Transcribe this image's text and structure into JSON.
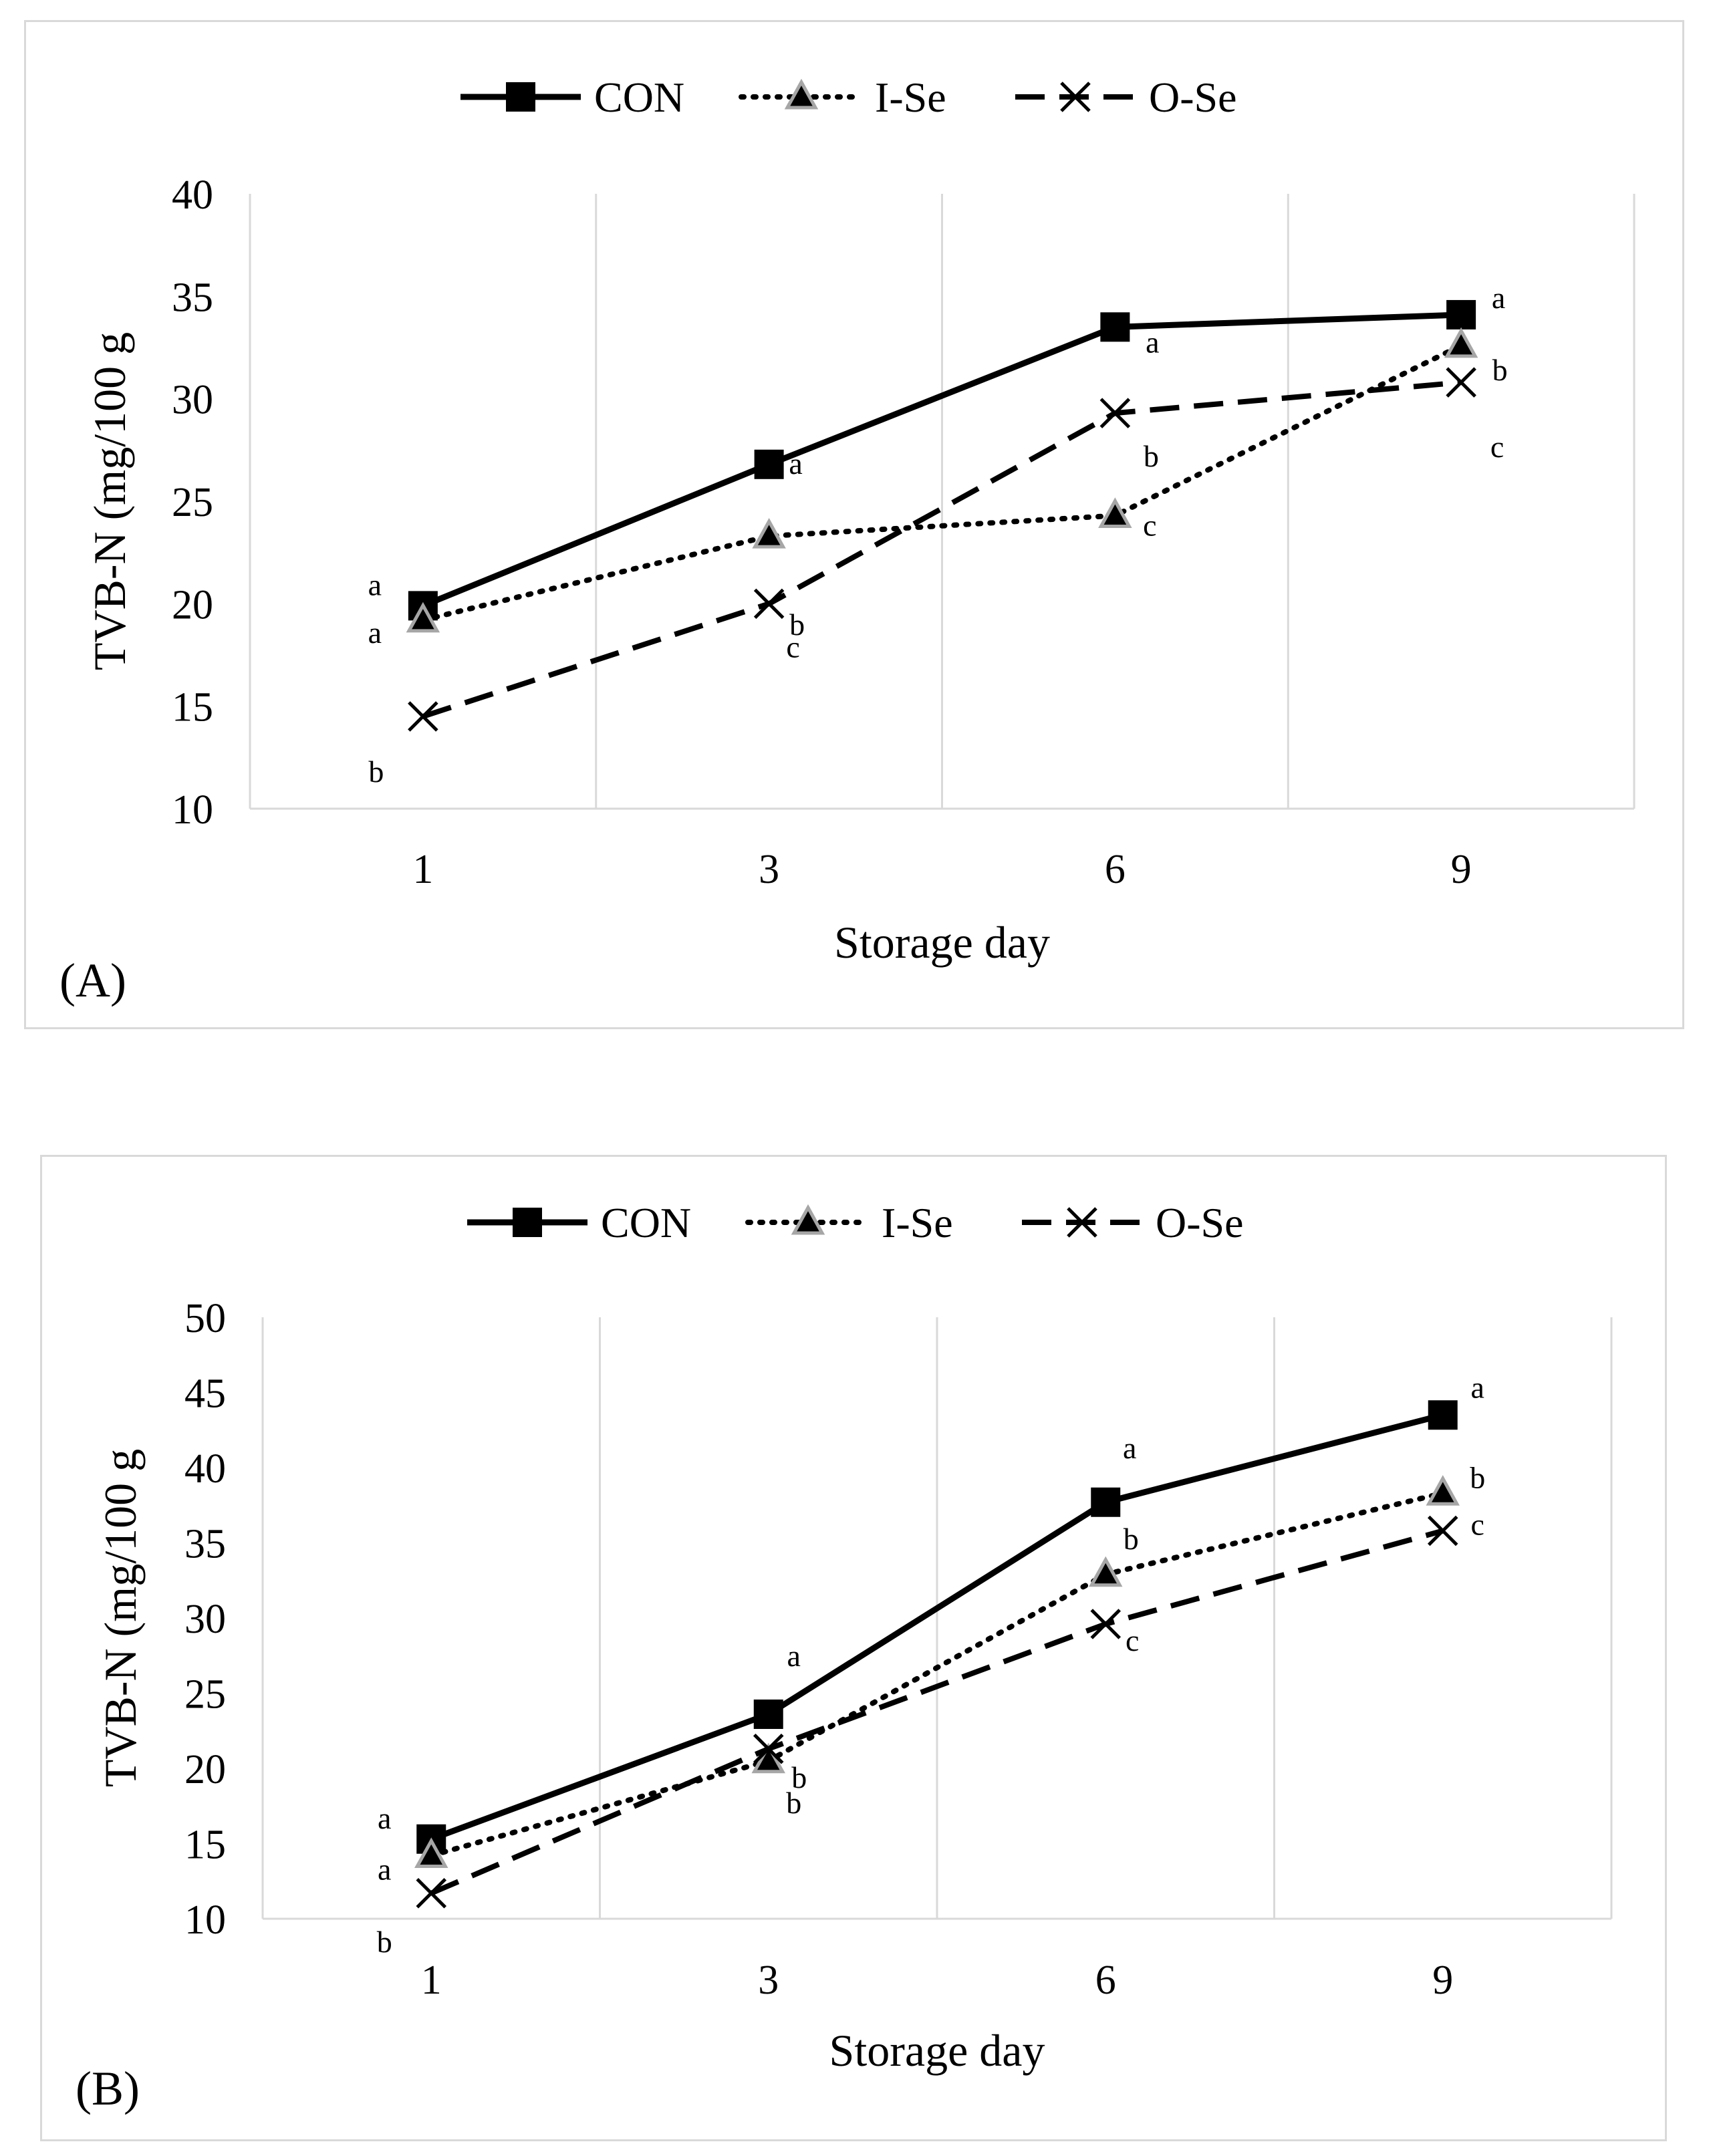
{
  "colors": {
    "line": "#000000",
    "grid": "#d9d9d9",
    "triangle_fill": "#000000",
    "triangle_edge": "#a6a6a6"
  },
  "chart_data": [
    {
      "type": "line",
      "panel_label": "(A)",
      "xlabel": "Storage day",
      "ylabel": "TVB-N (mg/100 g",
      "categories": [
        "1",
        "3",
        "6",
        "9"
      ],
      "ylim": [
        10,
        40
      ],
      "yticks": [
        10,
        15,
        20,
        25,
        30,
        35,
        40
      ],
      "grid": "vertical",
      "legend": "top-center",
      "series": [
        {
          "name": "CON",
          "marker": "square",
          "line": "solid",
          "values": [
            19.9,
            26.8,
            33.5,
            34.1
          ],
          "letters": [
            "a",
            "a",
            "a",
            "a"
          ]
        },
        {
          "name": "I-Se",
          "marker": "triangle",
          "line": "dotted",
          "values": [
            19.2,
            23.3,
            24.3,
            32.6
          ],
          "letters": [
            "a",
            "b",
            "c",
            "b"
          ]
        },
        {
          "name": "O-Se",
          "marker": "x",
          "line": "dashed",
          "values": [
            14.5,
            20.0,
            29.3,
            30.8
          ],
          "letters": [
            "b",
            "c",
            "b",
            "c"
          ]
        }
      ]
    },
    {
      "type": "line",
      "panel_label": "(B)",
      "xlabel": "Storage day",
      "ylabel": "TVB-N (mg/100 g",
      "categories": [
        "1",
        "3",
        "6",
        "9"
      ],
      "ylim": [
        10,
        50
      ],
      "yticks": [
        10,
        15,
        20,
        25,
        30,
        35,
        40,
        45,
        50
      ],
      "grid": "vertical",
      "legend": "top-center",
      "series": [
        {
          "name": "CON",
          "marker": "square",
          "line": "solid",
          "values": [
            15.3,
            23.6,
            37.7,
            43.5
          ],
          "letters": [
            "a",
            "a",
            "a",
            "a"
          ]
        },
        {
          "name": "I-Se",
          "marker": "triangle",
          "line": "dotted",
          "values": [
            14.2,
            20.5,
            32.9,
            38.3
          ],
          "letters": [
            "a",
            "b",
            "b",
            "b"
          ]
        },
        {
          "name": "O-Se",
          "marker": "x",
          "line": "dashed",
          "values": [
            11.7,
            21.3,
            29.6,
            35.8
          ],
          "letters": [
            "b",
            "b",
            "c",
            "c"
          ]
        }
      ]
    }
  ]
}
